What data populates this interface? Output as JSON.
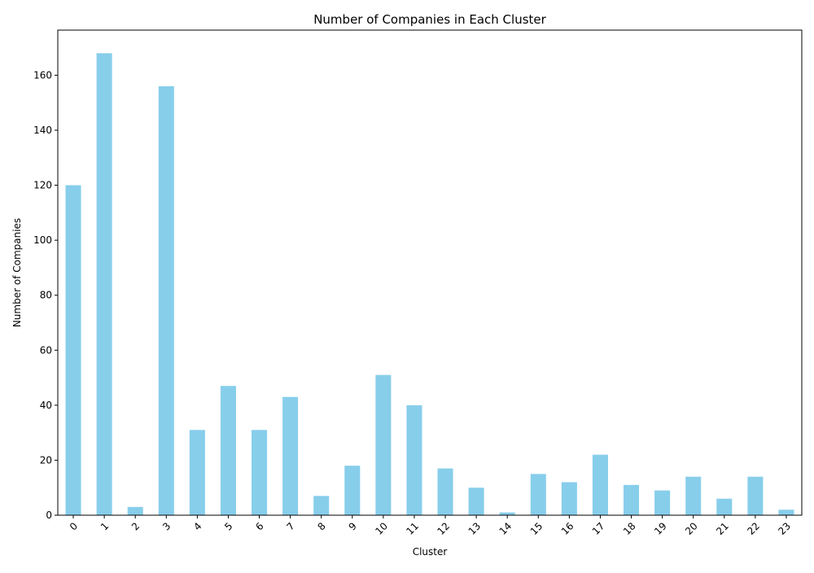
{
  "chart_data": {
    "type": "bar",
    "title": "Number of Companies in Each Cluster",
    "xlabel": "Cluster",
    "ylabel": "Number of Companies",
    "categories": [
      "0",
      "1",
      "2",
      "3",
      "4",
      "5",
      "6",
      "7",
      "8",
      "9",
      "10",
      "11",
      "12",
      "13",
      "14",
      "15",
      "16",
      "17",
      "18",
      "19",
      "20",
      "21",
      "22",
      "23"
    ],
    "values": [
      120,
      168,
      3,
      156,
      31,
      47,
      31,
      43,
      7,
      18,
      51,
      40,
      17,
      10,
      1,
      15,
      12,
      22,
      11,
      9,
      14,
      6,
      14,
      2
    ],
    "ylim": [
      0,
      176.4
    ],
    "yticks": [
      0,
      20,
      40,
      60,
      80,
      100,
      120,
      140,
      160
    ],
    "ytick_labels": [
      "0",
      "20",
      "40",
      "60",
      "80",
      "100",
      "120",
      "140",
      "160"
    ],
    "grid": false,
    "bar_color": "#87ceeb",
    "x_tick_rotation_deg": 45
  }
}
